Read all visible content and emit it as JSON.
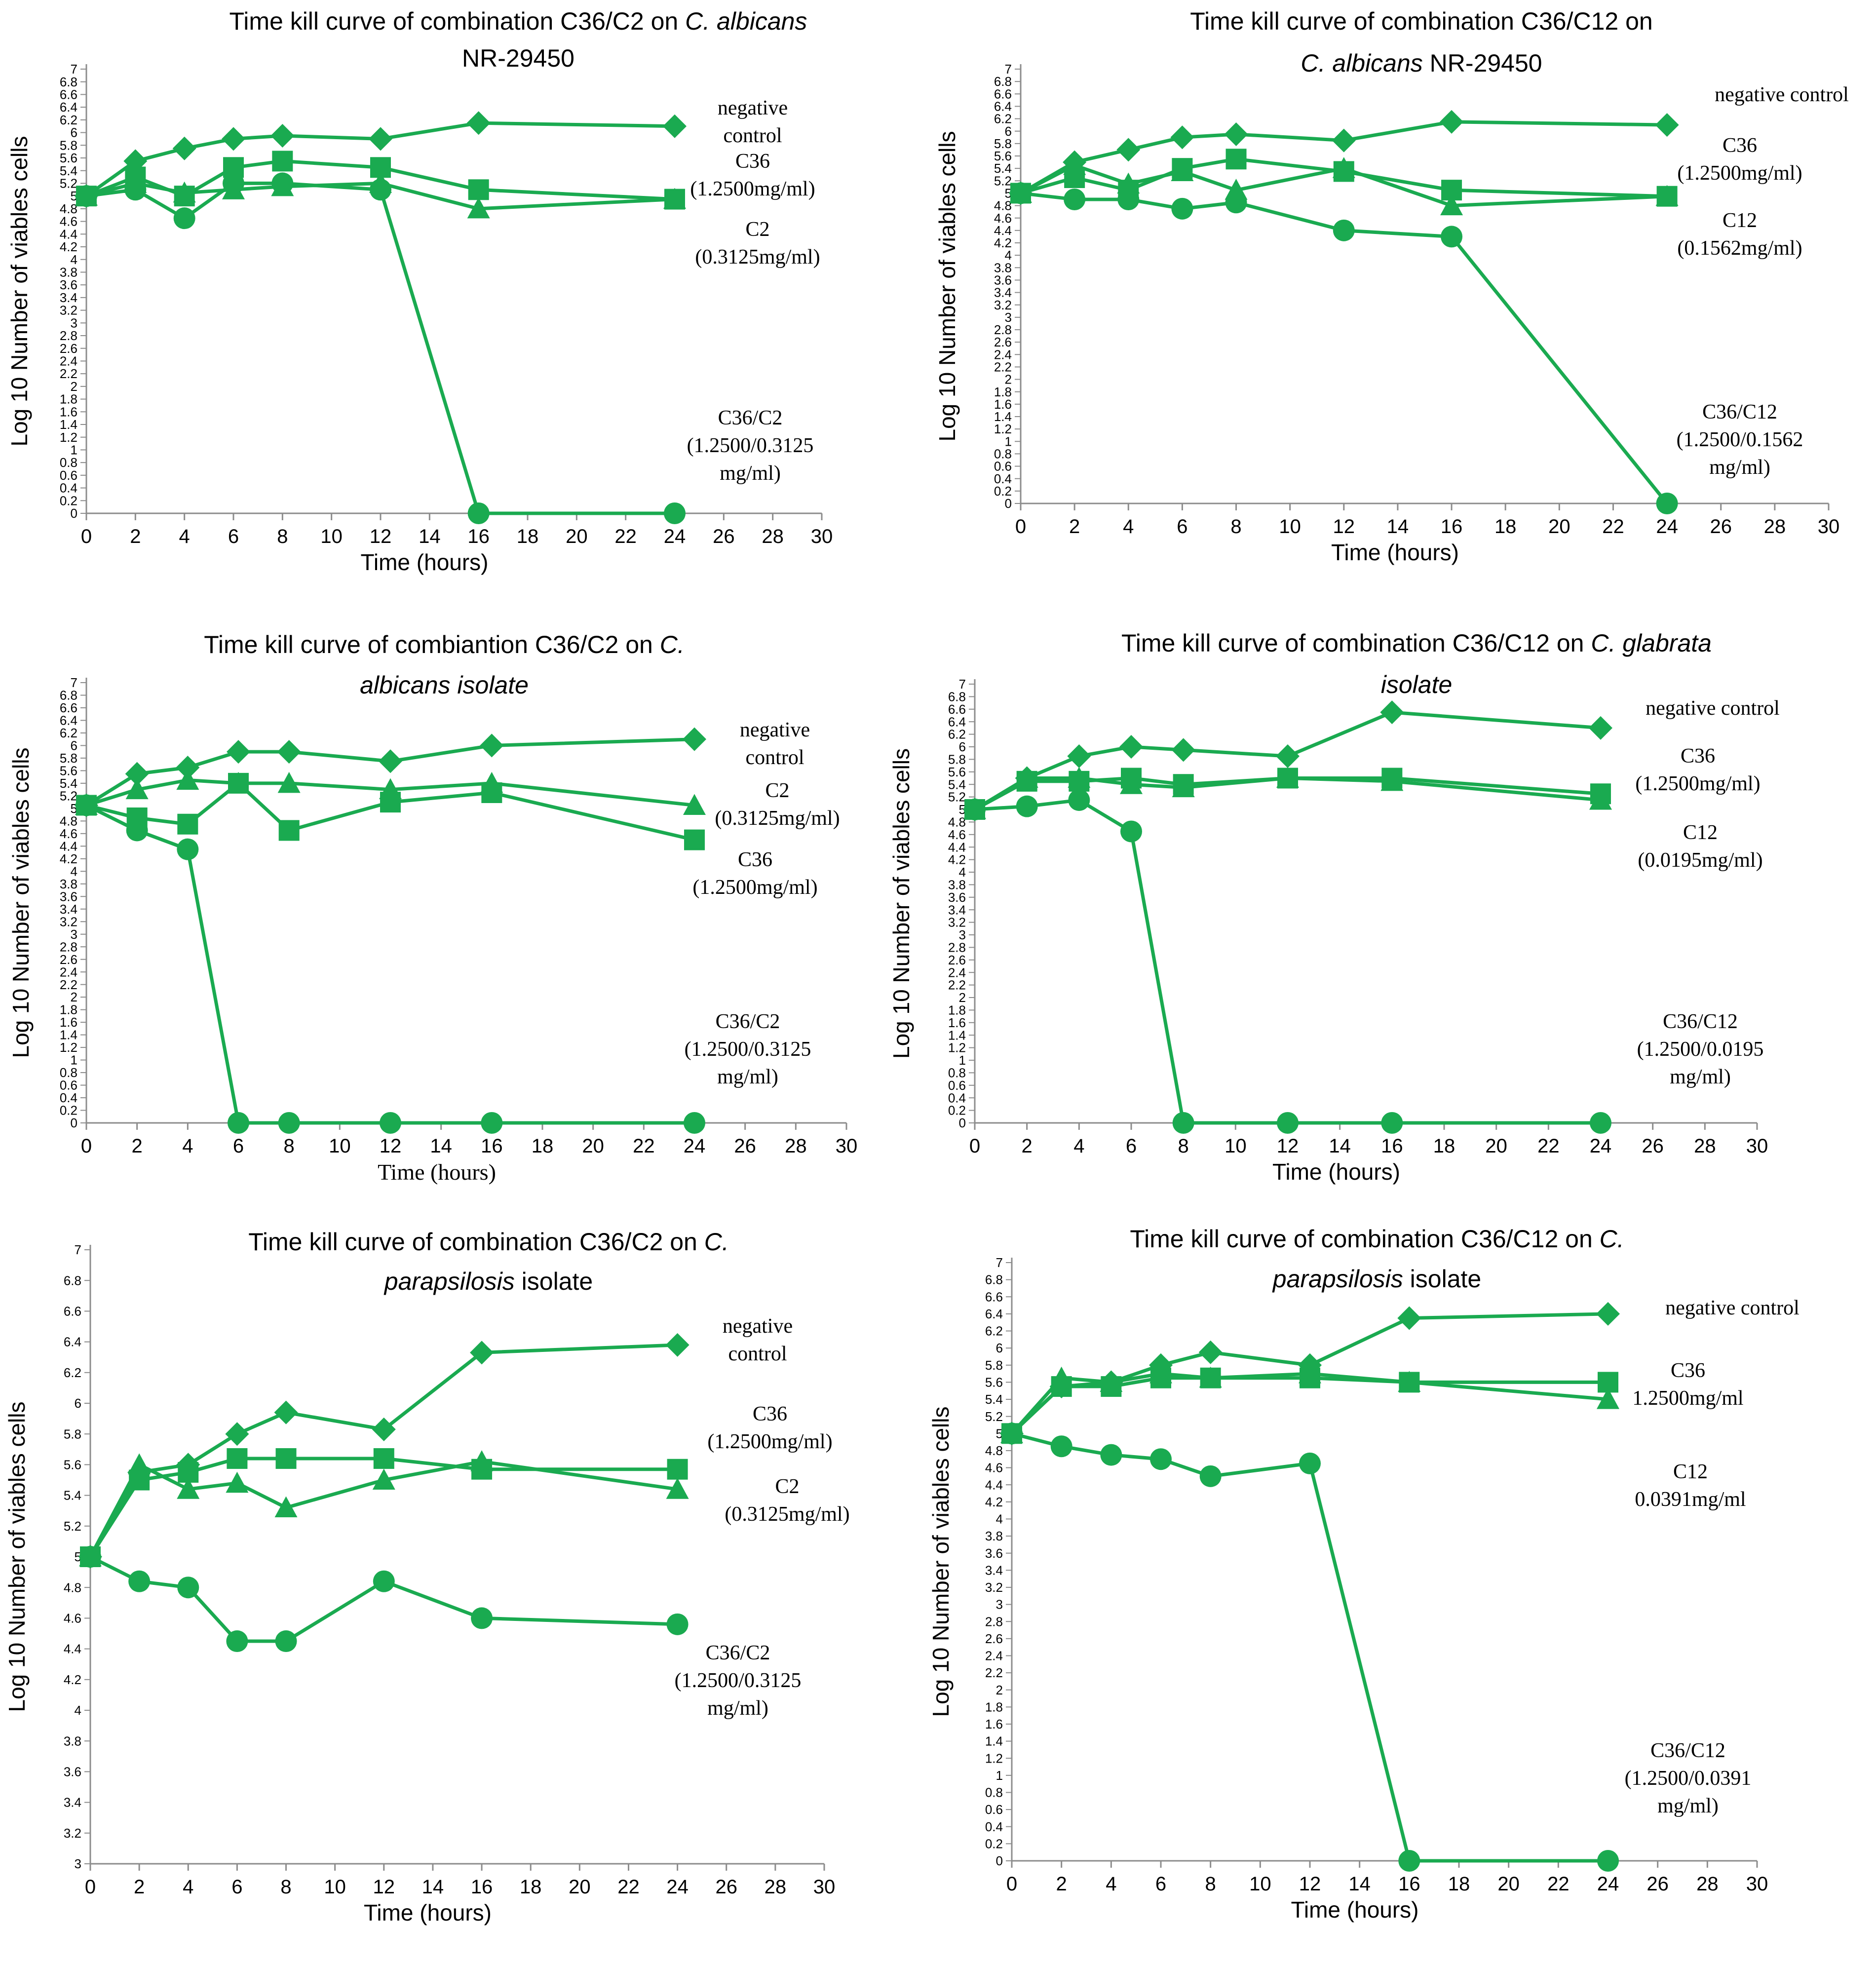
{
  "colors": {
    "series": "#1aaa50",
    "axis": "#8c8c8c",
    "text": "#000000"
  },
  "chart_data": [
    {
      "type": "line",
      "title_parts": [
        {
          "text": "Time kill curve of combination C36/C2 on ",
          "italic": false
        },
        {
          "text": "C. albicans",
          "italic": true
        },
        {
          "text": "NR-29450",
          "italic": false
        }
      ],
      "xlabel": "Time (hours)",
      "ylabel": "Log 10 Number of viables cells",
      "xlim": [
        0,
        30
      ],
      "xticks": [
        0,
        2,
        4,
        6,
        8,
        10,
        12,
        14,
        16,
        18,
        20,
        22,
        24,
        26,
        28,
        30
      ],
      "ylim": [
        0,
        7
      ],
      "ytick_step": 0.2,
      "series": [
        {
          "name": "negative control",
          "marker": "diamond",
          "x": [
            0,
            2,
            4,
            6,
            8,
            12,
            16,
            24
          ],
          "y": [
            5.0,
            5.55,
            5.75,
            5.9,
            5.95,
            5.9,
            6.15,
            6.1
          ]
        },
        {
          "name": "C36 (1.2500mg/ml)",
          "marker": "square",
          "x": [
            0,
            2,
            4,
            6,
            8,
            12,
            16,
            24
          ],
          "y": [
            5.0,
            5.3,
            5.0,
            5.45,
            5.55,
            5.45,
            5.1,
            4.95
          ]
        },
        {
          "name": "C2 (0.3125mg/ml)",
          "marker": "triangle",
          "x": [
            0,
            2,
            4,
            6,
            8,
            12,
            16,
            24
          ],
          "y": [
            5.0,
            5.2,
            5.05,
            5.1,
            5.15,
            5.2,
            4.8,
            4.95
          ]
        },
        {
          "name": "C36/C2 (1.2500/0.3125 mg/ml)",
          "marker": "circle",
          "x": [
            0,
            2,
            4,
            6,
            8,
            12,
            16,
            24
          ],
          "y": [
            5.0,
            5.1,
            4.65,
            5.2,
            5.2,
            5.1,
            0,
            0
          ]
        }
      ],
      "annotations": [
        {
          "lines": [
            "negative",
            "control"
          ]
        },
        {
          "lines": [
            "C36",
            "(1.2500mg/ml)"
          ]
        },
        {
          "lines": [
            "C2",
            "(0.3125mg/ml)"
          ]
        },
        {
          "lines": [
            "C36/C2",
            "(1.2500/0.3125",
            "mg/ml)"
          ]
        }
      ]
    },
    {
      "type": "line",
      "title_parts": [
        {
          "text": "Time kill curve of combination C36/C12 on",
          "italic": false
        },
        {
          "text": "C. albicans",
          "italic": true
        },
        {
          "text": " NR-29450",
          "italic": false
        }
      ],
      "xlabel": "Time (hours)",
      "ylabel": "Log 10 Number of viables cells",
      "xlim": [
        0,
        30
      ],
      "xticks": [
        0,
        2,
        4,
        6,
        8,
        10,
        12,
        14,
        16,
        18,
        20,
        22,
        24,
        26,
        28,
        30
      ],
      "ylim": [
        0,
        7
      ],
      "ytick_step": 0.2,
      "series": [
        {
          "name": "negative control",
          "marker": "diamond",
          "x": [
            0,
            2,
            4,
            6,
            8,
            12,
            16,
            24
          ],
          "y": [
            5.0,
            5.5,
            5.7,
            5.9,
            5.95,
            5.85,
            6.15,
            6.1
          ]
        },
        {
          "name": "C36 (1.2500mg/ml)",
          "marker": "square",
          "x": [
            0,
            2,
            4,
            6,
            8,
            12,
            16,
            24
          ],
          "y": [
            5.0,
            5.25,
            5.05,
            5.4,
            5.55,
            5.35,
            5.05,
            4.95
          ]
        },
        {
          "name": "C12 (0.1562mg/ml)",
          "marker": "triangle",
          "x": [
            0,
            2,
            4,
            6,
            8,
            12,
            16,
            24
          ],
          "y": [
            5.0,
            5.45,
            5.15,
            5.35,
            5.05,
            5.4,
            4.8,
            4.95
          ]
        },
        {
          "name": "C36/C12 (1.2500/0.1562 mg/ml)",
          "marker": "circle",
          "x": [
            0,
            2,
            4,
            6,
            8,
            12,
            16,
            24
          ],
          "y": [
            5.0,
            4.9,
            4.9,
            4.75,
            4.85,
            4.4,
            4.3,
            0
          ]
        }
      ],
      "annotations": [
        {
          "lines": [
            "negative control"
          ]
        },
        {
          "lines": [
            "C36",
            "(1.2500mg/ml)"
          ]
        },
        {
          "lines": [
            "C12",
            "(0.1562mg/ml)"
          ]
        },
        {
          "lines": [
            "C36/C12",
            "(1.2500/0.1562",
            "mg/ml)"
          ]
        }
      ]
    },
    {
      "type": "line",
      "title_parts": [
        {
          "text": "Time kill curve of combiantion C36/C2 on ",
          "italic": false
        },
        {
          "text": "C.",
          "italic": true
        },
        {
          "text": "albicans isolate",
          "italic": true
        }
      ],
      "xlabel": "Time (hours)",
      "ylabel": "Log 10 Number of  viables cells",
      "xlim": [
        0,
        30
      ],
      "xticks": [
        0,
        2,
        4,
        6,
        8,
        10,
        12,
        14,
        16,
        18,
        20,
        22,
        24,
        26,
        28,
        30
      ],
      "ylim": [
        0,
        7
      ],
      "ytick_step": 0.2,
      "series": [
        {
          "name": "negative control",
          "marker": "diamond",
          "x": [
            0,
            2,
            4,
            6,
            8,
            12,
            16,
            24
          ],
          "y": [
            5.05,
            5.55,
            5.65,
            5.9,
            5.9,
            5.75,
            6.0,
            6.1
          ]
        },
        {
          "name": "C2 (0.3125mg/ml)",
          "marker": "triangle",
          "x": [
            0,
            2,
            4,
            6,
            8,
            12,
            16,
            24
          ],
          "y": [
            5.05,
            5.3,
            5.45,
            5.4,
            5.4,
            5.3,
            5.4,
            5.05
          ]
        },
        {
          "name": "C36 (1.2500mg/ml)",
          "marker": "square",
          "x": [
            0,
            2,
            4,
            6,
            8,
            12,
            16,
            24
          ],
          "y": [
            5.05,
            4.85,
            4.75,
            5.4,
            4.65,
            5.1,
            5.25,
            4.5
          ]
        },
        {
          "name": "C36/C2 (1.2500/0.3125 mg/ml)",
          "marker": "circle",
          "x": [
            0,
            2,
            4,
            6,
            8,
            12,
            16,
            24
          ],
          "y": [
            5.05,
            4.65,
            4.35,
            0,
            0,
            0,
            0,
            0
          ]
        }
      ],
      "annotations": [
        {
          "lines": [
            "negative",
            "control"
          ]
        },
        {
          "lines": [
            "C2",
            "(0.3125mg/ml)"
          ]
        },
        {
          "lines": [
            "C36",
            "(1.2500mg/ml)"
          ]
        },
        {
          "lines": [
            "C36/C2",
            "(1.2500/0.3125",
            "mg/ml)"
          ]
        }
      ]
    },
    {
      "type": "line",
      "title_parts": [
        {
          "text": "Time kill curve of  combination C36/C12 on ",
          "italic": false
        },
        {
          "text": "C. glabrata",
          "italic": true
        },
        {
          "text": "isolate",
          "italic": true
        }
      ],
      "xlabel": "Time (hours)",
      "ylabel": "Log 10 Number of   viables cells",
      "xlim": [
        0,
        30
      ],
      "xticks": [
        0,
        2,
        4,
        6,
        8,
        10,
        12,
        14,
        16,
        18,
        20,
        22,
        24,
        26,
        28,
        30
      ],
      "ylim": [
        0,
        7
      ],
      "ytick_step": 0.2,
      "series": [
        {
          "name": "negative control",
          "marker": "diamond",
          "x": [
            0,
            2,
            4,
            6,
            8,
            12,
            16,
            24
          ],
          "y": [
            5.0,
            5.5,
            5.85,
            6.0,
            5.95,
            5.85,
            6.55,
            6.3
          ]
        },
        {
          "name": "C36 (1.2500mg/ml)",
          "marker": "square",
          "x": [
            0,
            2,
            4,
            6,
            8,
            12,
            16,
            24
          ],
          "y": [
            5.0,
            5.45,
            5.45,
            5.5,
            5.4,
            5.5,
            5.5,
            5.25
          ]
        },
        {
          "name": "C12 (0.0195mg/ml)",
          "marker": "triangle",
          "x": [
            0,
            2,
            4,
            6,
            8,
            12,
            16,
            24
          ],
          "y": [
            5.0,
            5.5,
            5.5,
            5.4,
            5.35,
            5.5,
            5.45,
            5.15
          ]
        },
        {
          "name": "C36/C12 (1.2500/0.0195 mg/ml)",
          "marker": "circle",
          "x": [
            0,
            2,
            4,
            6,
            8,
            12,
            16,
            24
          ],
          "y": [
            5.0,
            5.05,
            5.15,
            4.65,
            0,
            0,
            0,
            0
          ]
        }
      ],
      "annotations": [
        {
          "lines": [
            "negative control"
          ]
        },
        {
          "lines": [
            "C36",
            "(1.2500mg/ml)"
          ]
        },
        {
          "lines": [
            "C12",
            "(0.0195mg/ml)"
          ]
        },
        {
          "lines": [
            "C36/C12",
            "(1.2500/0.0195",
            "mg/ml)"
          ]
        }
      ]
    },
    {
      "type": "line",
      "title_parts": [
        {
          "text": "Time kill curve of combination C36/C2 on ",
          "italic": false
        },
        {
          "text": "C.",
          "italic": true
        },
        {
          "text": "parapsilosis",
          "italic": true
        },
        {
          "text": "  isolate",
          "italic": false
        }
      ],
      "xlabel": "Time (hours)",
      "ylabel": "Log 10 Number of viables cells",
      "xlim": [
        0,
        30
      ],
      "xticks": [
        0,
        2,
        4,
        6,
        8,
        10,
        12,
        14,
        16,
        18,
        20,
        22,
        24,
        26,
        28,
        30
      ],
      "ylim": [
        3,
        7
      ],
      "ytick_step": 0.2,
      "series": [
        {
          "name": "negative control",
          "marker": "diamond",
          "x": [
            0,
            2,
            4,
            6,
            8,
            12,
            16,
            24
          ],
          "y": [
            5.0,
            5.55,
            5.6,
            5.8,
            5.94,
            5.83,
            6.33,
            6.38
          ]
        },
        {
          "name": "C36 (1.2500mg/ml)",
          "marker": "square",
          "x": [
            0,
            2,
            4,
            6,
            8,
            12,
            16,
            24
          ],
          "y": [
            5.0,
            5.5,
            5.55,
            5.64,
            5.64,
            5.64,
            5.57,
            5.57
          ]
        },
        {
          "name": "C2 (0.3125mg/ml)",
          "marker": "triangle",
          "x": [
            0,
            2,
            4,
            6,
            8,
            12,
            16,
            24
          ],
          "y": [
            5.0,
            5.6,
            5.44,
            5.48,
            5.32,
            5.5,
            5.62,
            5.44
          ]
        },
        {
          "name": "C36/C2 (1.2500/0.3125 mg/ml)",
          "marker": "circle",
          "x": [
            0,
            2,
            4,
            6,
            8,
            12,
            16,
            24
          ],
          "y": [
            5.0,
            4.84,
            4.8,
            4.45,
            4.45,
            4.84,
            4.6,
            4.56
          ]
        }
      ],
      "annotations": [
        {
          "lines": [
            "negative",
            "control"
          ]
        },
        {
          "lines": [
            "C36",
            "(1.2500mg/ml)"
          ]
        },
        {
          "lines": [
            "C2",
            "(0.3125mg/ml)"
          ]
        },
        {
          "lines": [
            "C36/C2",
            "(1.2500/0.3125",
            "mg/ml)"
          ]
        }
      ]
    },
    {
      "type": "line",
      "title_parts": [
        {
          "text": "Time kill curve  of  combination C36/C12 on ",
          "italic": false
        },
        {
          "text": "C.",
          "italic": true
        },
        {
          "text": "parapsilosis",
          "italic": true
        },
        {
          "text": " isolate",
          "italic": false
        }
      ],
      "xlabel": "Time (hours)",
      "ylabel": "Log 10 Number of viables cells",
      "xlim": [
        0,
        30
      ],
      "xticks": [
        0,
        2,
        4,
        6,
        8,
        10,
        12,
        14,
        16,
        18,
        20,
        22,
        24,
        26,
        28,
        30
      ],
      "ylim": [
        0,
        7
      ],
      "ytick_step": 0.2,
      "series": [
        {
          "name": "negative control",
          "marker": "diamond",
          "x": [
            0,
            2,
            4,
            6,
            8,
            12,
            16,
            24
          ],
          "y": [
            5.0,
            5.55,
            5.6,
            5.8,
            5.95,
            5.8,
            6.35,
            6.4
          ]
        },
        {
          "name": "C36 1.2500mg/ml",
          "marker": "square",
          "x": [
            0,
            2,
            4,
            6,
            8,
            12,
            16,
            24
          ],
          "y": [
            5.0,
            5.55,
            5.55,
            5.65,
            5.65,
            5.65,
            5.6,
            5.6
          ]
        },
        {
          "name": "C12 0.0391mg/ml",
          "marker": "triangle",
          "x": [
            0,
            2,
            4,
            6,
            8,
            12,
            16,
            24
          ],
          "y": [
            5.0,
            5.65,
            5.6,
            5.7,
            5.65,
            5.7,
            5.6,
            5.4
          ]
        },
        {
          "name": "C36/C12 (1.2500/0.0391 mg/ml)",
          "marker": "circle",
          "x": [
            0,
            2,
            4,
            6,
            8,
            12,
            16,
            24
          ],
          "y": [
            5.0,
            4.85,
            4.75,
            4.7,
            4.5,
            4.65,
            0,
            0
          ]
        }
      ],
      "annotations": [
        {
          "lines": [
            "negative control"
          ]
        },
        {
          "lines": [
            "C36",
            "1.2500mg/ml"
          ]
        },
        {
          "lines": [
            "C12",
            "0.0391mg/ml"
          ]
        },
        {
          "lines": [
            "C36/C12",
            "(1.2500/0.0391",
            "mg/ml)"
          ]
        }
      ]
    }
  ]
}
